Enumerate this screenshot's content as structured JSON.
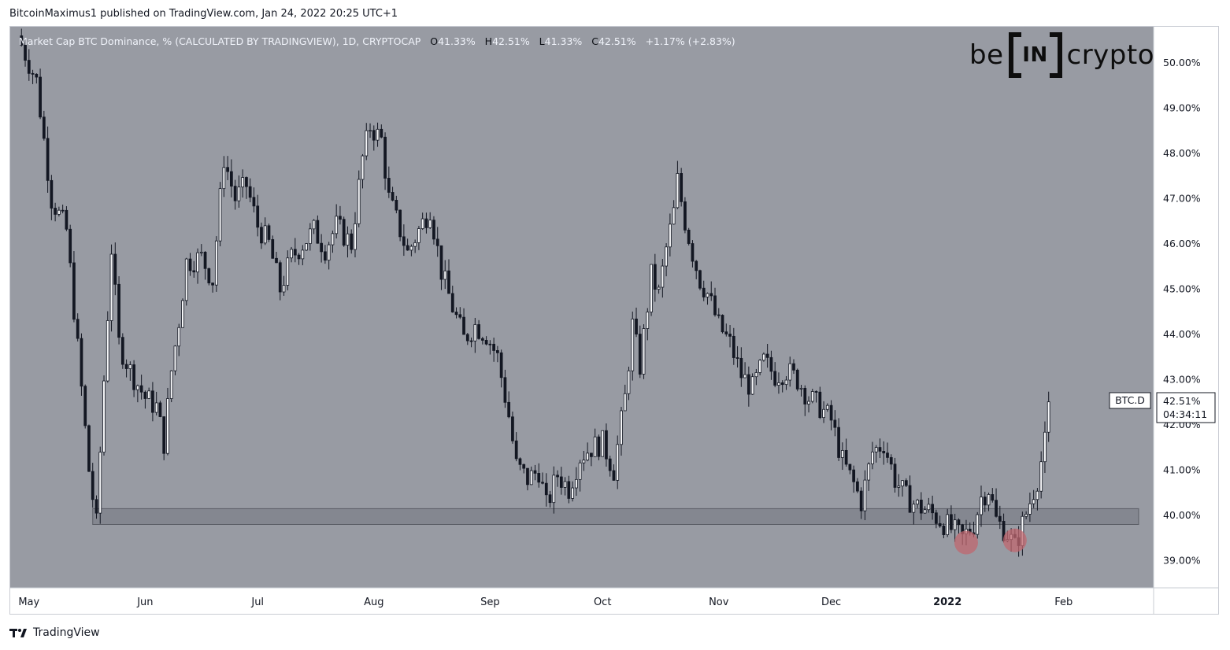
{
  "header": {
    "published": "BitcoinMaximus1 published on TradingView.com, Jan 24, 2022 20:25 UTC+1"
  },
  "legend": {
    "title": "Market Cap BTC Dominance, % (CALCULATED BY TRADINGVIEW), 1D, CRYPTOCAP",
    "o_key": "O",
    "o_val": "41.33%",
    "h_key": "H",
    "h_val": "42.51%",
    "l_key": "L",
    "l_val": "41.33%",
    "c_key": "C",
    "c_val": "42.51%",
    "change": "+1.17% (+2.83%)"
  },
  "logo": {
    "left": "be",
    "middle": "IN",
    "right": "crypto"
  },
  "price_badge": {
    "symbol": "BTC.D",
    "price": "42.51%",
    "countdown": "04:34:11"
  },
  "footer": {
    "brand": "TradingView"
  },
  "colors": {
    "plot_bg": "#989ba3",
    "candle": "#131722",
    "support_zone": "#7d8089",
    "highlight": "#c0676f"
  },
  "chart_data": {
    "type": "candlestick",
    "title": "Market Cap BTC Dominance, % (CALCULATED BY TRADINGVIEW), 1D, CRYPTOCAP",
    "ylim": [
      38.4,
      50.8
    ],
    "y_ticks": [
      "50.00%",
      "49.00%",
      "48.00%",
      "47.00%",
      "46.00%",
      "45.00%",
      "44.00%",
      "43.00%",
      "42.00%",
      "41.00%",
      "40.00%",
      "39.00%"
    ],
    "x_ticks": [
      {
        "label": "May",
        "day": 0
      },
      {
        "label": "Jun",
        "day": 31
      },
      {
        "label": "Jul",
        "day": 61
      },
      {
        "label": "Aug",
        "day": 92
      },
      {
        "label": "Sep",
        "day": 123
      },
      {
        "label": "Oct",
        "day": 153
      },
      {
        "label": "Nov",
        "day": 184
      },
      {
        "label": "Dec",
        "day": 214
      },
      {
        "label": "2022",
        "day": 245,
        "bold": true
      },
      {
        "label": "Feb",
        "day": 276
      }
    ],
    "x_range": [
      -5,
      300
    ],
    "support_zone": {
      "from_day": 17,
      "to_day": 296,
      "low": 39.8,
      "high": 40.15
    },
    "highlight_lows": [
      {
        "day": 250,
        "price": 39.4
      },
      {
        "day": 263,
        "price": 39.45
      }
    ],
    "close_path": [
      [
        -3,
        50.6
      ],
      [
        2,
        49.6
      ],
      [
        6,
        47.0
      ],
      [
        10,
        46.3
      ],
      [
        13,
        43.7
      ],
      [
        16,
        41.0
      ],
      [
        18,
        39.8
      ],
      [
        20,
        43.0
      ],
      [
        22,
        45.9
      ],
      [
        24,
        43.8
      ],
      [
        27,
        43.2
      ],
      [
        31,
        42.6
      ],
      [
        34,
        42.4
      ],
      [
        36,
        41.6
      ],
      [
        38,
        43.2
      ],
      [
        40,
        44.3
      ],
      [
        42,
        45.6
      ],
      [
        46,
        45.7
      ],
      [
        49,
        45.2
      ],
      [
        52,
        47.9
      ],
      [
        55,
        47.0
      ],
      [
        58,
        47.3
      ],
      [
        61,
        46.4
      ],
      [
        64,
        46.0
      ],
      [
        67,
        45.0
      ],
      [
        70,
        45.7
      ],
      [
        73,
        46.0
      ],
      [
        76,
        46.3
      ],
      [
        79,
        45.9
      ],
      [
        82,
        46.4
      ],
      [
        86,
        46.0
      ],
      [
        89,
        47.9
      ],
      [
        91,
        48.6
      ],
      [
        94,
        48.3
      ],
      [
        96,
        47.0
      ],
      [
        99,
        46.3
      ],
      [
        101,
        45.8
      ],
      [
        104,
        46.3
      ],
      [
        107,
        46.8
      ],
      [
        110,
        45.4
      ],
      [
        113,
        44.6
      ],
      [
        116,
        43.9
      ],
      [
        119,
        44.2
      ],
      [
        122,
        44.0
      ],
      [
        125,
        43.5
      ],
      [
        128,
        42.2
      ],
      [
        130,
        41.1
      ],
      [
        133,
        40.8
      ],
      [
        136,
        41.0
      ],
      [
        138,
        40.2
      ],
      [
        141,
        40.9
      ],
      [
        144,
        40.6
      ],
      [
        147,
        41.3
      ],
      [
        150,
        41.5
      ],
      [
        153,
        41.6
      ],
      [
        156,
        41.0
      ],
      [
        159,
        42.6
      ],
      [
        161,
        44.2
      ],
      [
        163,
        43.3
      ],
      [
        166,
        45.3
      ],
      [
        168,
        44.9
      ],
      [
        170,
        45.9
      ],
      [
        172,
        46.7
      ],
      [
        173,
        47.4
      ],
      [
        175,
        46.5
      ],
      [
        177,
        45.8
      ],
      [
        179,
        45.2
      ],
      [
        181,
        44.9
      ],
      [
        184,
        44.2
      ],
      [
        187,
        43.8
      ],
      [
        190,
        43.1
      ],
      [
        193,
        42.8
      ],
      [
        196,
        43.4
      ],
      [
        199,
        43.1
      ],
      [
        202,
        43.2
      ],
      [
        205,
        43.0
      ],
      [
        208,
        42.6
      ],
      [
        211,
        42.4
      ],
      [
        214,
        42.1
      ],
      [
        217,
        41.2
      ],
      [
        220,
        40.7
      ],
      [
        222,
        40.3
      ],
      [
        225,
        41.4
      ],
      [
        228,
        41.6
      ],
      [
        231,
        40.8
      ],
      [
        234,
        40.4
      ],
      [
        237,
        40.2
      ],
      [
        240,
        40.1
      ],
      [
        243,
        39.9
      ],
      [
        246,
        39.7
      ],
      [
        249,
        39.5
      ],
      [
        252,
        39.8
      ],
      [
        254,
        40.4
      ],
      [
        256,
        40.6
      ],
      [
        258,
        39.9
      ],
      [
        261,
        39.6
      ],
      [
        263,
        39.3
      ],
      [
        265,
        39.8
      ],
      [
        267,
        40.3
      ],
      [
        269,
        40.8
      ],
      [
        271,
        41.6
      ],
      [
        272,
        42.51
      ]
    ]
  }
}
